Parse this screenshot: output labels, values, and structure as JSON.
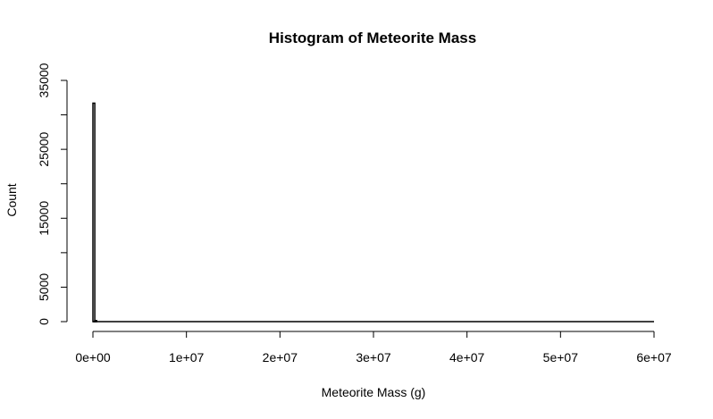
{
  "chart_data": {
    "type": "bar",
    "title": "Histogram of Meteorite Mass",
    "xlabel": "Meteorite Mass (g)",
    "ylabel": "Count",
    "xlim": [
      0,
      60000000
    ],
    "ylim": [
      0,
      35000
    ],
    "x_ticks": [
      0,
      10000000,
      20000000,
      30000000,
      40000000,
      50000000,
      60000000
    ],
    "x_tick_labels": [
      "0e+00",
      "1e+07",
      "2e+07",
      "3e+07",
      "4e+07",
      "5e+07",
      "6e+07"
    ],
    "y_ticks": [
      0,
      5000,
      10000,
      15000,
      20000,
      25000,
      30000,
      35000
    ],
    "y_tick_labels": [
      "0",
      "5000",
      "",
      "15000",
      "",
      "25000",
      "",
      "35000"
    ],
    "bin_width": 200000,
    "bins": [
      {
        "x0": 0,
        "x1": 200000,
        "count": 31700
      },
      {
        "x0": 200000,
        "x1": 400000,
        "count": 150
      }
    ],
    "grid": false,
    "bar_fill": "#ffffff",
    "bar_stroke": "#000000"
  }
}
